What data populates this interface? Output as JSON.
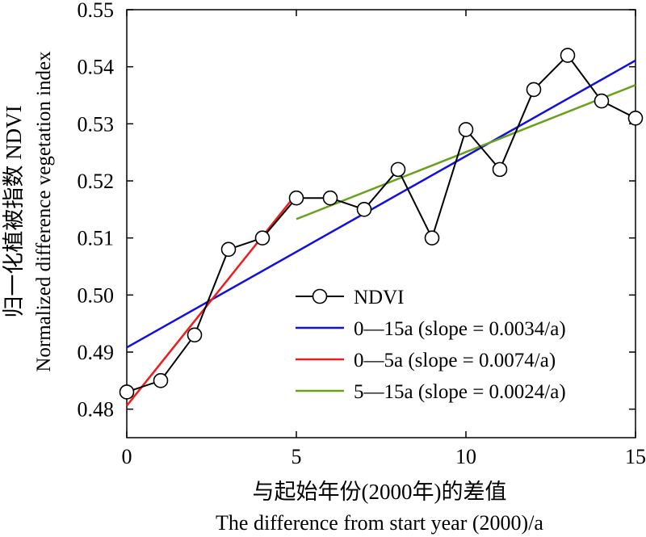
{
  "chart_data": {
    "type": "line",
    "xlabel_cn": "与起始年份(2000年)的差值",
    "xlabel_en": "The difference from start year (2000)/a",
    "ylabel_cn": "归一化植被指数 NDVI",
    "ylabel_en": "Normalized difference vegetation index",
    "xlim": [
      0,
      15
    ],
    "ylim": [
      0.475,
      0.55
    ],
    "xticks": [
      0,
      5,
      10,
      15
    ],
    "xtick_labels": [
      "0",
      "5",
      "10",
      "15"
    ],
    "yticks": [
      0.48,
      0.49,
      0.5,
      0.51,
      0.52,
      0.53,
      0.54,
      0.55
    ],
    "ytick_labels": [
      "0.48",
      "0.49",
      "0.50",
      "0.51",
      "0.52",
      "0.53",
      "0.54",
      "0.55"
    ],
    "grid": false,
    "legend_position": "bottom-right",
    "series": [
      {
        "name": "NDVI",
        "color": "#000000",
        "marker": "open-circle",
        "x": [
          0,
          1,
          2,
          3,
          4,
          5,
          6,
          7,
          8,
          9,
          10,
          11,
          12,
          13,
          14,
          15
        ],
        "y": [
          0.483,
          0.485,
          0.493,
          0.508,
          0.51,
          0.517,
          0.517,
          0.515,
          0.522,
          0.51,
          0.529,
          0.522,
          0.536,
          0.542,
          0.534,
          0.531
        ]
      },
      {
        "name": "0—15a (slope = 0.0034/a)",
        "color": "#1010e0",
        "x": [
          0,
          15
        ],
        "y": [
          0.4908,
          0.5411
        ]
      },
      {
        "name": "0—5a (slope = 0.0074/a)",
        "color": "#ee1c1c",
        "x": [
          0,
          5
        ],
        "y": [
          0.4806,
          0.5177
        ]
      },
      {
        "name": "5—15a (slope = 0.0024/a)",
        "color": "#6aa11c",
        "x": [
          5,
          15
        ],
        "y": [
          0.5133,
          0.5368
        ]
      }
    ]
  }
}
